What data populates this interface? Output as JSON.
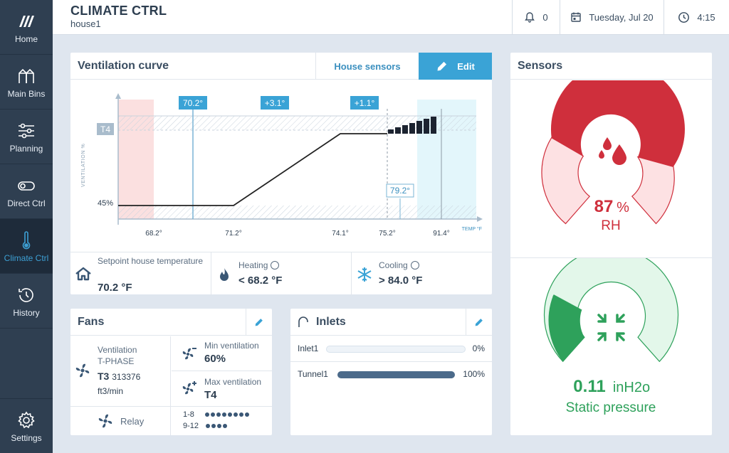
{
  "sidebar": {
    "items": [
      {
        "label": "Home",
        "icon": "logo-icon"
      },
      {
        "label": "Main Bins",
        "icon": "bins-icon"
      },
      {
        "label": "Planning",
        "icon": "sliders-icon"
      },
      {
        "label": "Direct Ctrl",
        "icon": "toggle-icon"
      },
      {
        "label": "Climate Ctrl",
        "icon": "thermometer-icon",
        "active": true
      },
      {
        "label": "History",
        "icon": "history-icon"
      },
      {
        "label": "Settings",
        "icon": "gear-icon"
      }
    ]
  },
  "header": {
    "title": "CLIMATE CTRL",
    "subtitle": "house1",
    "notifications": "0",
    "date": "Tuesday, Jul 20",
    "time": "4:15"
  },
  "ventilation": {
    "title": "Ventilation curve",
    "tab_sensors": "House sensors",
    "tab_edit": "Edit",
    "chart": {
      "y_axis_label": "VENTILATION %",
      "x_axis_label": "TEMP °F",
      "y_label_top": "T4",
      "y_label_bottom": "45%",
      "x_ticks": [
        "68.2°",
        "71.2°",
        "74.1°",
        "75.2°",
        "91.4°"
      ],
      "callout_setpoint": "70.2°",
      "callout_offset1": "+3.1°",
      "callout_offset2": "+1.1°",
      "callout_current": "79.2°"
    },
    "setpoint_label": "Setpoint house temperature",
    "setpoint_value": "70.2 °F",
    "heating_label": "Heating",
    "heating_value": "< 68.2 °F",
    "cooling_label": "Cooling",
    "cooling_value": "> 84.0 °F"
  },
  "sensors": {
    "title": "Sensors",
    "rh_value": "87",
    "rh_unit": "%",
    "rh_label": "RH",
    "rh_fraction": 0.87,
    "sp_value": "0.11",
    "sp_unit": "inH2o",
    "sp_label": "Static pressure"
  },
  "fans": {
    "title": "Fans",
    "vent_label": "Ventilation",
    "vent_phase": "T-PHASE",
    "vent_stage": "T3",
    "vent_amount": "313376",
    "vent_unit": "ft3/min",
    "min_label": "Min ventilation",
    "min_value": "60%",
    "max_label": "Max ventilation",
    "max_value": "T4",
    "relay_label": "Relay",
    "relay_group1": "1-8",
    "relay_group2": "9-12"
  },
  "inlets": {
    "title": "Inlets",
    "rows": [
      {
        "name": "Inlet1",
        "value": "0%",
        "fraction": 0
      },
      {
        "name": "Tunnel1",
        "value": "100%",
        "fraction": 1
      }
    ]
  },
  "colors": {
    "accent": "#3aa3d6",
    "sidebar": "#2f3f51",
    "rh_red": "#cf2f3c",
    "sp_green": "#2ea15b"
  }
}
